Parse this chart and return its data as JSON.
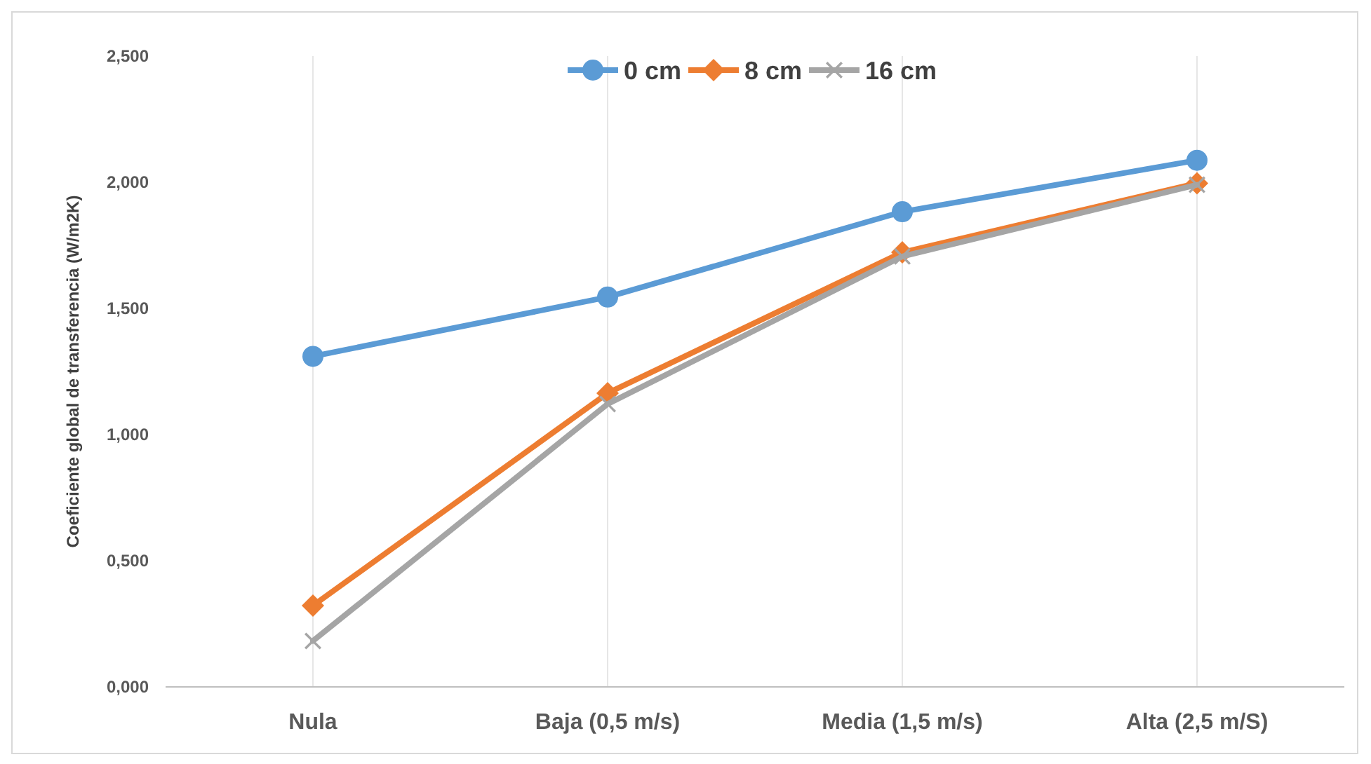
{
  "chart_data": {
    "type": "line",
    "ylabel": "Coeficiente global de transferencia (W/m2K)",
    "categories": [
      "Nula",
      "Baja (0,5 m/s)",
      "Media (1,5 m/s)",
      "Alta (2,5 m/S)"
    ],
    "series": [
      {
        "name": "0 cm",
        "color": "#5b9bd5",
        "marker": "circle",
        "values": [
          1.31,
          1.545,
          1.883,
          2.087
        ]
      },
      {
        "name": "8 cm",
        "color": "#ed7d31",
        "marker": "diamond",
        "values": [
          0.322,
          1.164,
          1.722,
          1.996
        ]
      },
      {
        "name": "16 cm",
        "color": "#a5a5a5",
        "marker": "cross",
        "values": [
          0.182,
          1.121,
          1.706,
          1.99
        ]
      }
    ],
    "ylim": [
      0,
      2.5
    ],
    "yticks": [
      {
        "value": 0,
        "label": "0,000"
      },
      {
        "value": 0.5,
        "label": "0,500"
      },
      {
        "value": 1,
        "label": "1,000"
      },
      {
        "value": 1.5,
        "label": "1,500"
      },
      {
        "value": 2,
        "label": "2,000"
      },
      {
        "value": 2.5,
        "label": "2,500"
      }
    ],
    "grid": "x",
    "legend": "top",
    "line_style": "solid"
  }
}
